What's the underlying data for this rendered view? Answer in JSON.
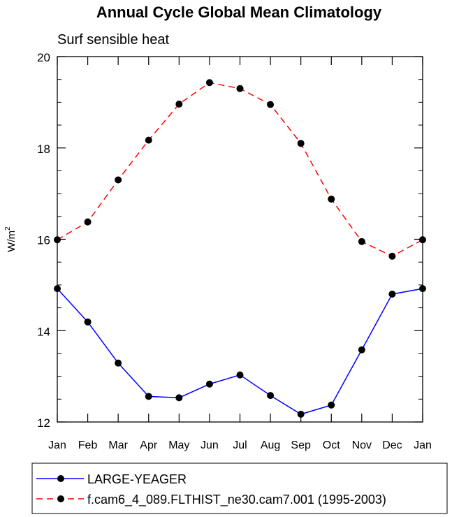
{
  "chart_data": {
    "type": "line",
    "title": "Annual Cycle Global Mean Climatology",
    "subtitle": "Surf sensible heat",
    "ylabel_base": "W/m",
    "ylabel_sup": "2",
    "xlabel": "",
    "categories": [
      "Jan",
      "Feb",
      "Mar",
      "Apr",
      "May",
      "Jun",
      "Jul",
      "Aug",
      "Sep",
      "Oct",
      "Nov",
      "Dec",
      "Jan"
    ],
    "ylim": [
      12,
      20
    ],
    "yticks": [
      12,
      14,
      16,
      18,
      20
    ],
    "series": [
      {
        "name": "LARGE-YEAGER",
        "color": "#0000ff",
        "dash": "solid",
        "values": [
          14.92,
          14.19,
          13.29,
          12.56,
          12.53,
          12.83,
          13.03,
          12.58,
          12.17,
          12.37,
          13.58,
          14.8,
          14.92
        ]
      },
      {
        "name": "f.cam6_4_089.FLTHIST_ne30.cam7.001 (1995-2003)",
        "color": "#ff0000",
        "dash": "dashed",
        "values": [
          15.99,
          16.38,
          17.3,
          18.17,
          18.96,
          19.43,
          19.3,
          18.95,
          18.1,
          16.88,
          15.95,
          15.63,
          15.99
        ]
      }
    ],
    "legend_position": "bottom"
  }
}
